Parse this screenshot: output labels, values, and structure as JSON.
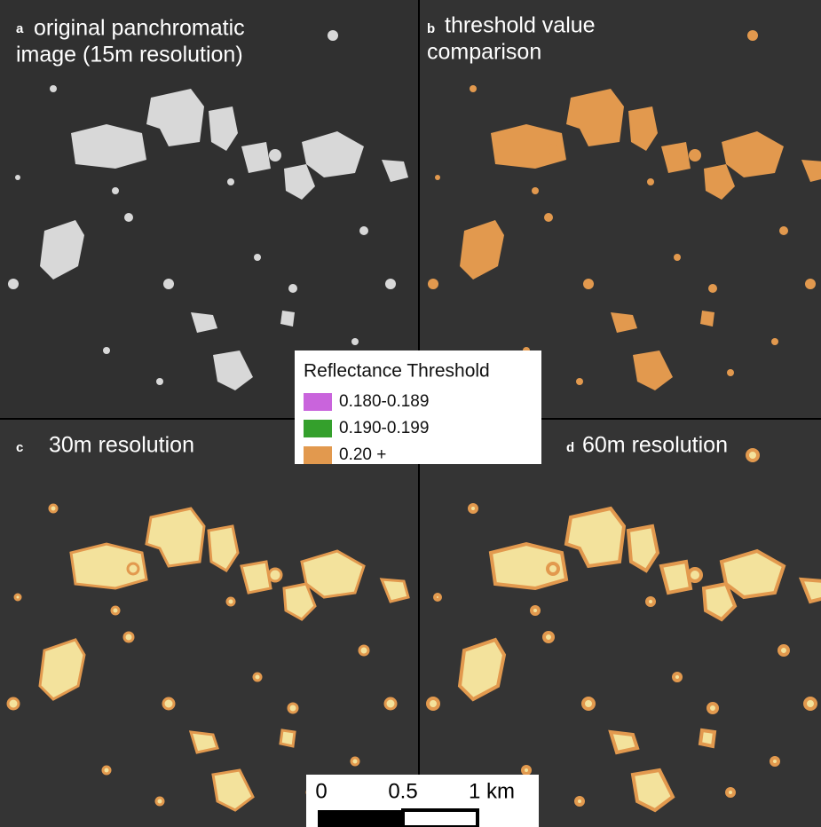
{
  "panels": [
    {
      "letter": "a",
      "title_lines": [
        "original panchromatic",
        "image (15m resolution)"
      ]
    },
    {
      "letter": "b",
      "title_lines": [
        "threshold value",
        "comparison"
      ]
    },
    {
      "letter": "c",
      "title_lines": [
        "30m resolution"
      ]
    },
    {
      "letter": "d",
      "title_lines": [
        "60m resolution"
      ]
    }
  ],
  "legend": {
    "title": "Reflectance Threshold",
    "items": [
      {
        "label": "0.180-0.189",
        "color": "#c964dc"
      },
      {
        "label": "0.190-0.199",
        "color": "#34a02c"
      },
      {
        "label": "0.20 +",
        "color": "#e2994e"
      }
    ]
  },
  "scale_bar": {
    "labels": [
      "0",
      "0.5",
      "1 km"
    ]
  }
}
